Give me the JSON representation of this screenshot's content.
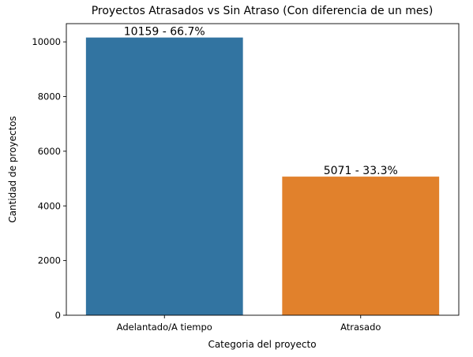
{
  "chart_data": {
    "type": "bar",
    "title": "Proyectos Atrasados vs Sin Atraso (Con diferencia de un mes)",
    "xlabel": "Categoria del proyecto",
    "ylabel": "Cantidad de proyectos",
    "categories": [
      "Adelantado/A tiempo",
      "Atrasado"
    ],
    "values": [
      10159,
      5071
    ],
    "data_labels": [
      "10159 - 66.7%",
      "5071 - 33.3%"
    ],
    "colors": [
      "#3274a1",
      "#e1812c"
    ],
    "ylim": [
      0,
      10667
    ],
    "yticks": [
      0,
      2000,
      4000,
      6000,
      8000,
      10000
    ],
    "grid": false,
    "legend": "none"
  }
}
